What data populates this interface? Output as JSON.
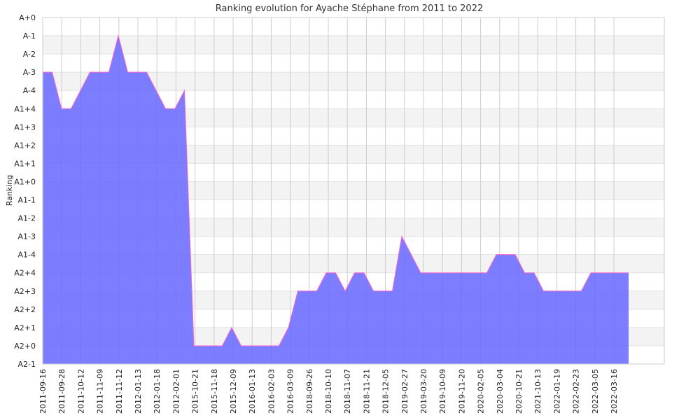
{
  "chart_data": {
    "type": "area",
    "title": "Ranking evolution for Ayache Stéphane from 2011 to 2022",
    "ylabel": "Ranking",
    "xlabel": "",
    "y_ticks": [
      "A2-1",
      "A2+0",
      "A2+1",
      "A2+2",
      "A2+3",
      "A2+4",
      "A1-4",
      "A1-3",
      "A1-2",
      "A1-1",
      "A1+0",
      "A1+1",
      "A1+2",
      "A1+3",
      "A1+4",
      "A-4",
      "A-3",
      "A-2",
      "A-1",
      "A+0"
    ],
    "x_tick_labels": [
      "2011-09-16",
      "2011-09-28",
      "2011-10-12",
      "2011-11-09",
      "2011-11-12",
      "2012-01-13",
      "2012-01-18",
      "2012-02-01",
      "2015-10-21",
      "2015-11-18",
      "2015-12-09",
      "2016-01-13",
      "2016-02-03",
      "2016-03-09",
      "2018-09-26",
      "2018-10-10",
      "2018-11-07",
      "2018-11-21",
      "2018-12-05",
      "2019-02-27",
      "2019-03-20",
      "2019-10-09",
      "2019-11-20",
      "2020-02-05",
      "2020-03-04",
      "2020-10-21",
      "2021-10-13",
      "2022-01-19",
      "2022-02-23",
      "2022-03-05",
      "2022-03-16"
    ],
    "series": [
      {
        "values": [
          "A-3",
          "A-3",
          "A1+4",
          "A1+4",
          "A-4",
          "A-3",
          "A-3",
          "A-3",
          "A-1",
          "A-3",
          "A-3",
          "A-3",
          "A-4",
          "A1+4",
          "A1+4",
          "A-4",
          "A2+0",
          "A2+0",
          "A2+0",
          "A2+0",
          "A2+1",
          "A2+0",
          "A2+0",
          "A2+0",
          "A2+0",
          "A2+0",
          "A2+1",
          "A2+3",
          "A2+3",
          "A2+3",
          "A2+4",
          "A2+4",
          "A2+3",
          "A2+4",
          "A2+4",
          "A2+3",
          "A2+3",
          "A2+3",
          "A1-3",
          "A1-4",
          "A2+4",
          "A2+4",
          "A2+4",
          "A2+4",
          "A2+4",
          "A2+4",
          "A2+4",
          "A2+4",
          "A1-4",
          "A1-4",
          "A1-4",
          "A2+4",
          "A2+4",
          "A2+3",
          "A2+3",
          "A2+3",
          "A2+3",
          "A2+3",
          "A2+4",
          "A2+4",
          "A2+4",
          "A2+4",
          "A2+4"
        ]
      }
    ],
    "grid": true,
    "colors": {
      "fill": "#6666ff",
      "line": "#ff66cc",
      "band": "#f3f3f3",
      "grid": "#cccccc"
    }
  }
}
